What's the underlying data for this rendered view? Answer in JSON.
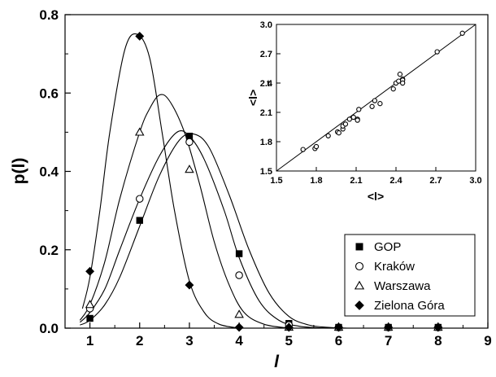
{
  "chart_data": [
    {
      "type": "scatter",
      "xlabel": "l",
      "ylabel": "p(l)",
      "xlim": [
        0.5,
        9
      ],
      "ylim": [
        0,
        0.8
      ],
      "x_ticks": [
        "1",
        "2",
        "3",
        "4",
        "5",
        "6",
        "7",
        "8",
        "9"
      ],
      "y_ticks": [
        "0.0",
        "0.2",
        "0.4",
        "0.6",
        "0.8"
      ],
      "legend_position": "bottom-right",
      "x": [
        1,
        2,
        3,
        4,
        5,
        6,
        7,
        8
      ],
      "series": [
        {
          "name": "GOP",
          "marker": "filled-square",
          "values": [
            0.025,
            0.275,
            0.49,
            0.19,
            0.012,
            0.0,
            0.0,
            0.0
          ],
          "fit_curve": [
            [
              0.8,
              0.008
            ],
            [
              1.0,
              0.02
            ],
            [
              1.3,
              0.06
            ],
            [
              1.6,
              0.13
            ],
            [
              2.0,
              0.26
            ],
            [
              2.4,
              0.39
            ],
            [
              2.8,
              0.48
            ],
            [
              3.1,
              0.495
            ],
            [
              3.4,
              0.46
            ],
            [
              3.8,
              0.34
            ],
            [
              4.2,
              0.2
            ],
            [
              4.6,
              0.09
            ],
            [
              5.0,
              0.03
            ],
            [
              5.4,
              0.008
            ],
            [
              5.8,
              0.002
            ],
            [
              6.2,
              0.0
            ]
          ]
        },
        {
          "name": "Kraków",
          "marker": "open-circle",
          "values": [
            0.05,
            0.33,
            0.475,
            0.135,
            0.008,
            0.0,
            0.0,
            0.0
          ],
          "fit_curve": [
            [
              0.8,
              0.015
            ],
            [
              1.0,
              0.04
            ],
            [
              1.3,
              0.1
            ],
            [
              1.6,
              0.2
            ],
            [
              2.0,
              0.33
            ],
            [
              2.4,
              0.44
            ],
            [
              2.75,
              0.5
            ],
            [
              3.0,
              0.49
            ],
            [
              3.3,
              0.43
            ],
            [
              3.7,
              0.3
            ],
            [
              4.0,
              0.18
            ],
            [
              4.4,
              0.07
            ],
            [
              4.8,
              0.02
            ],
            [
              5.2,
              0.005
            ],
            [
              5.6,
              0.001
            ],
            [
              6.0,
              0.0
            ]
          ]
        },
        {
          "name": "Warszawa",
          "marker": "open-triangle",
          "values": [
            0.06,
            0.5,
            0.405,
            0.035,
            0.0,
            0.0,
            0.0,
            0.0
          ],
          "fit_curve": [
            [
              0.8,
              0.02
            ],
            [
              1.0,
              0.06
            ],
            [
              1.3,
              0.17
            ],
            [
              1.6,
              0.33
            ],
            [
              2.0,
              0.5
            ],
            [
              2.2,
              0.56
            ],
            [
              2.4,
              0.595
            ],
            [
              2.6,
              0.58
            ],
            [
              2.9,
              0.5
            ],
            [
              3.2,
              0.37
            ],
            [
              3.5,
              0.22
            ],
            [
              3.8,
              0.11
            ],
            [
              4.1,
              0.04
            ],
            [
              4.5,
              0.01
            ],
            [
              5.0,
              0.0
            ]
          ]
        },
        {
          "name": "Zielona Góra",
          "marker": "filled-diamond",
          "values": [
            0.145,
            0.745,
            0.11,
            0.0,
            0.0,
            0.0,
            0.0,
            0.0
          ],
          "fit_curve": [
            [
              0.85,
              0.05
            ],
            [
              1.0,
              0.13
            ],
            [
              1.2,
              0.3
            ],
            [
              1.4,
              0.5
            ],
            [
              1.7,
              0.71
            ],
            [
              1.95,
              0.75
            ],
            [
              2.2,
              0.69
            ],
            [
              2.45,
              0.5
            ],
            [
              2.7,
              0.3
            ],
            [
              3.0,
              0.12
            ],
            [
              3.3,
              0.04
            ],
            [
              3.6,
              0.01
            ],
            [
              4.0,
              0.0
            ]
          ]
        }
      ]
    },
    {
      "type": "scatter",
      "xlabel": "<l>",
      "ylabel": "<l>",
      "ylabel_subscript": "t",
      "xlim": [
        1.5,
        3.0
      ],
      "ylim": [
        1.5,
        3.0
      ],
      "x_ticks": [
        "1.5",
        "1.8",
        "2.1",
        "2.4",
        "2.7",
        "3.0"
      ],
      "y_ticks": [
        "1.5",
        "1.8",
        "2.1",
        "2.4",
        "2.7",
        "3.0"
      ],
      "marker": "open-circle",
      "points": [
        [
          1.7,
          1.72
        ],
        [
          1.79,
          1.73
        ],
        [
          1.8,
          1.75
        ],
        [
          1.89,
          1.86
        ],
        [
          1.96,
          1.9
        ],
        [
          1.97,
          1.89
        ],
        [
          2.0,
          1.93
        ],
        [
          2.0,
          1.96
        ],
        [
          2.02,
          1.98
        ],
        [
          2.05,
          2.03
        ],
        [
          2.08,
          2.05
        ],
        [
          2.11,
          2.03
        ],
        [
          2.11,
          2.02
        ],
        [
          2.12,
          2.13
        ],
        [
          2.22,
          2.16
        ],
        [
          2.24,
          2.22
        ],
        [
          2.28,
          2.19
        ],
        [
          2.38,
          2.34
        ],
        [
          2.4,
          2.4
        ],
        [
          2.42,
          2.42
        ],
        [
          2.43,
          2.49
        ],
        [
          2.45,
          2.44
        ],
        [
          2.45,
          2.43
        ],
        [
          2.45,
          2.4
        ],
        [
          2.71,
          2.72
        ],
        [
          2.9,
          2.91
        ]
      ],
      "line": [
        [
          1.5,
          1.5
        ],
        [
          3.0,
          3.0
        ]
      ]
    }
  ]
}
